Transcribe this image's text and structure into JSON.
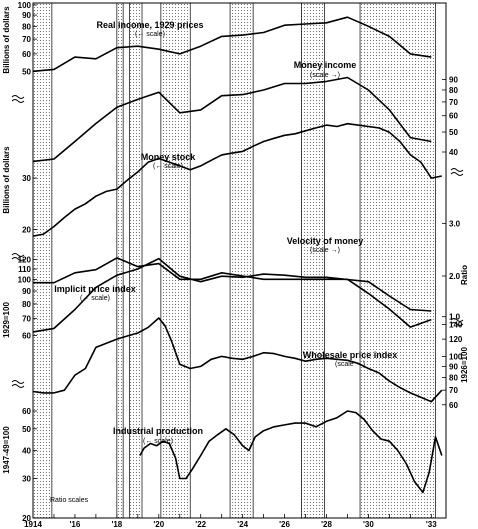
{
  "chart_data": {
    "type": "line",
    "scale": "ratio",
    "note": "Ratio scales",
    "x_axis": {
      "range": [
        1914,
        1933.7
      ],
      "ticks": [
        {
          "value": 1914,
          "label": "1914"
        },
        {
          "value": 1916,
          "label": "'16"
        },
        {
          "value": 1918,
          "label": "'18"
        },
        {
          "value": 1920,
          "label": "'20"
        },
        {
          "value": 1922,
          "label": "'22"
        },
        {
          "value": 1924,
          "label": "'24"
        },
        {
          "value": 1926,
          "label": "'26"
        },
        {
          "value": 1928,
          "label": "'28"
        },
        {
          "value": 1930,
          "label": "'30"
        },
        {
          "value": 1933,
          "label": "'33"
        }
      ]
    },
    "shaded_periods": [
      [
        1914.0,
        1914.9
      ],
      [
        1918.0,
        1918.3
      ],
      [
        1918.6,
        1919.2
      ],
      [
        1920.1,
        1921.5
      ],
      [
        1923.4,
        1924.5
      ],
      [
        1926.8,
        1927.9
      ],
      [
        1929.6,
        1933.2
      ]
    ],
    "axes": [
      {
        "side": "left",
        "title": "Billions of dollars",
        "range": [
          42,
          100
        ],
        "ticks": [
          50,
          60,
          70,
          80,
          90,
          100
        ],
        "tick_labels": [
          "50",
          "60",
          "70",
          "80",
          "90",
          "100"
        ]
      },
      {
        "side": "right",
        "range": [
          40,
          100
        ],
        "ticks": [
          40,
          50,
          60,
          70,
          80,
          90
        ],
        "tick_labels": [
          "40",
          "50",
          "60",
          "70",
          "80",
          "90"
        ]
      },
      {
        "side": "left",
        "title": "Billions of dollars",
        "range": [
          18,
          38
        ],
        "ticks": [
          20,
          30
        ],
        "tick_labels": [
          "20",
          "30"
        ]
      },
      {
        "side": "right",
        "title": "Ratio",
        "range": [
          1.6,
          4.0
        ],
        "ticks": [
          2.0,
          3.0
        ],
        "tick_labels": [
          "2.0",
          "3.0"
        ]
      },
      {
        "side": "left",
        "title": "1929=100",
        "range": [
          55,
          125
        ],
        "ticks": [
          60,
          70,
          80,
          90,
          100,
          110,
          120
        ],
        "tick_labels": [
          "60",
          "70",
          "80",
          "90",
          "100",
          "110",
          "120"
        ]
      },
      {
        "side": "right",
        "range": [
          0.9,
          1.15
        ],
        "ticks": [
          1.0
        ],
        "tick_labels": [
          "1.0"
        ]
      },
      {
        "side": "right",
        "title": "1926=100",
        "range": [
          55,
          150
        ],
        "ticks": [
          60,
          70,
          80,
          90,
          100,
          120,
          140
        ],
        "tick_labels": [
          "60",
          "70",
          "80",
          "90",
          "100",
          "120",
          "140"
        ]
      },
      {
        "side": "left",
        "title": "1947-49=100",
        "range": [
          20,
          70
        ],
        "ticks": [
          20,
          30,
          40,
          50,
          60
        ],
        "tick_labels": [
          "20",
          "30",
          "40",
          "50",
          "60"
        ]
      }
    ],
    "series": [
      {
        "name": "Real income, 1929 prices",
        "scale_note": "(← scale)",
        "axis": 0,
        "x": [
          1914,
          1915,
          1916,
          1917,
          1918,
          1919,
          1920,
          1921,
          1922,
          1923,
          1924,
          1925,
          1926,
          1927,
          1928,
          1929,
          1930,
          1931,
          1932,
          1933
        ],
        "y": [
          50,
          51,
          58,
          57,
          64,
          65,
          63,
          60,
          65,
          72,
          73,
          75,
          81,
          82,
          83,
          88,
          80,
          72,
          60,
          58
        ]
      },
      {
        "name": "Money income",
        "scale_note": "(scale →)",
        "axis": 1,
        "x": [
          1914,
          1915,
          1916,
          1917,
          1918,
          1919,
          1920,
          1921,
          1922,
          1923,
          1924,
          1925,
          1926,
          1927,
          1928,
          1929,
          1930,
          1931,
          1932,
          1933
        ],
        "y": [
          36,
          37,
          45,
          55,
          66,
          72,
          78,
          62,
          64,
          75,
          76,
          80,
          86,
          86,
          88,
          92,
          80,
          64,
          47,
          45
        ]
      },
      {
        "name": "Money stock",
        "scale_note": "(← scale)",
        "axis": 2,
        "x": [
          1914,
          1914.5,
          1915,
          1915.5,
          1916,
          1916.5,
          1917,
          1917.5,
          1918,
          1918.5,
          1919,
          1919.5,
          1920,
          1920.5,
          1921,
          1921.5,
          1922,
          1922.5,
          1923,
          1923.5,
          1924,
          1924.5,
          1925,
          1925.5,
          1926,
          1926.5,
          1927,
          1927.5,
          1928,
          1928.5,
          1929,
          1929.5,
          1930,
          1930.5,
          1931,
          1931.5,
          1932,
          1932.5,
          1933,
          1933.5
        ],
        "y": [
          19.0,
          19.3,
          20.5,
          22.0,
          23.5,
          24.5,
          26.0,
          27.0,
          27.5,
          29.5,
          31.5,
          34.0,
          35.0,
          34.0,
          33.0,
          32.0,
          33.0,
          34.5,
          36.0,
          36.5,
          37.0,
          38.5,
          40.0,
          41.0,
          42.0,
          42.5,
          43.5,
          44.5,
          45.5,
          45.0,
          46.0,
          45.5,
          45.0,
          44.5,
          43.0,
          40.0,
          36.0,
          34.0,
          30.0,
          30.5
        ]
      },
      {
        "name": "Velocity of money",
        "scale_note": "(scale →)",
        "axis": 3,
        "x": [
          1914,
          1915,
          1916,
          1917,
          1918,
          1919,
          1920,
          1921,
          1922,
          1923,
          1924,
          1925,
          1926,
          1927,
          1928,
          1929,
          1930,
          1931,
          1932,
          1933
        ],
        "y": [
          1.9,
          1.9,
          2.05,
          2.1,
          2.3,
          2.15,
          2.2,
          1.95,
          1.95,
          2.05,
          2.0,
          1.95,
          1.95,
          1.95,
          1.95,
          1.95,
          1.75,
          1.55,
          1.35,
          1.43
        ]
      },
      {
        "name": "Implicit price index",
        "scale_note": "(← scale)",
        "axis": 4,
        "x": [
          1914,
          1915,
          1916,
          1917,
          1918,
          1919,
          1920,
          1921,
          1922,
          1923,
          1924,
          1925,
          1926,
          1927,
          1928,
          1929,
          1930,
          1931,
          1932,
          1933
        ],
        "y": [
          62,
          64,
          76,
          93,
          104,
          110,
          121,
          103,
          98,
          103,
          102,
          105,
          104,
          102,
          102,
          100,
          98,
          86,
          76,
          75
        ]
      },
      {
        "name": "Wholesale price index",
        "scale_note": "(scale →)",
        "axis": 6,
        "x": [
          1914,
          1914.5,
          1915,
          1915.5,
          1916,
          1916.5,
          1917,
          1917.5,
          1918,
          1918.5,
          1919,
          1919.5,
          1920,
          1920.3,
          1920.6,
          1921,
          1921.5,
          1922,
          1922.5,
          1923,
          1923.5,
          1924,
          1924.5,
          1925,
          1925.5,
          1926,
          1926.5,
          1927,
          1927.5,
          1928,
          1928.5,
          1929,
          1929.5,
          1930,
          1930.5,
          1931,
          1931.5,
          1932,
          1932.5,
          1933,
          1933.5
        ],
        "y": [
          69,
          68,
          68,
          70,
          82,
          88,
          110,
          115,
          120,
          124,
          128,
          136,
          150,
          138,
          118,
          92,
          88,
          90,
          97,
          100,
          98,
          97,
          100,
          104,
          103,
          100,
          98,
          95,
          97,
          98,
          97,
          96,
          93,
          88,
          84,
          77,
          72,
          68,
          65,
          62,
          70
        ]
      },
      {
        "name": "Industrial production",
        "scale_note": "(← scale)",
        "axis": 7,
        "x": [
          1919.1,
          1919.3,
          1919.6,
          1919.9,
          1920.2,
          1920.5,
          1920.8,
          1921.0,
          1921.3,
          1921.6,
          1922.0,
          1922.4,
          1922.8,
          1923.2,
          1923.6,
          1924.0,
          1924.3,
          1924.6,
          1925.0,
          1925.5,
          1926.0,
          1926.5,
          1927.0,
          1927.5,
          1928.0,
          1928.5,
          1929.0,
          1929.4,
          1929.8,
          1930.2,
          1930.6,
          1931.0,
          1931.4,
          1931.8,
          1932.2,
          1932.6,
          1932.9,
          1933.2,
          1933.5
        ],
        "y": [
          38,
          41,
          43,
          42,
          44,
          43,
          37,
          30,
          30,
          33,
          38,
          44,
          47,
          50,
          47,
          42,
          40,
          46,
          49,
          51,
          52,
          53,
          53,
          51,
          54,
          56,
          60,
          59,
          55,
          49,
          45,
          44,
          40,
          35,
          29,
          26,
          32,
          46,
          38
        ]
      }
    ]
  }
}
